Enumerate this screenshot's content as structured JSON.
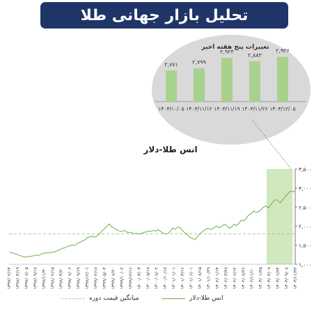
{
  "header": {
    "title": "تحلیل بازار جهانی طلا"
  },
  "colors": {
    "title_bg": "#1f3568",
    "bar": "#a9d18e",
    "line": "#70ad47",
    "highlight": "#c9e4b3",
    "average_line": "#a6c97e"
  },
  "chart_data": [
    {
      "type": "bar",
      "title": "تغییرات پنج هفته اخیر",
      "categories": [
        "۱۴۰۳/۱۰/۰۵",
        "۱۴۰۳/۱۱/۱۲",
        "۱۴۰۳/۱۱/۱۹",
        "۱۴۰۳/۱۱/۲۶",
        "۱۴۰۳/۱۲/۰۵"
      ],
      "values": [
        2771,
        2799,
        2923,
        2883,
        2936
      ],
      "value_labels": [
        "۲,۷۷۱",
        "۲,۷۹۹",
        "۲,۹۲۳",
        "۲,۸۸۳",
        "۲,۹۳۶"
      ],
      "ylim": [
        2400,
        3000
      ]
    },
    {
      "type": "line",
      "title": "انس طلا-دلار",
      "xlabel": "",
      "ylabel": "",
      "ylim": [
        1000,
        3500
      ],
      "y_ticks": [
        1000,
        1500,
        2000,
        2500,
        3000,
        3500
      ],
      "y_tick_labels": [
        "۱,۰۰۰",
        "۱,۵۰۰",
        "۲,۰۰۰",
        "۲,۵۰۰",
        "۳,۰۰۰",
        "۳,۵۰۰"
      ],
      "x_tick_labels": [
        "۱۳۹۷/۰۲/۱۴",
        "۱۳۹۷/۰۴/۱۹",
        "۱۳۹۷/۰۷/۰۵",
        "۱۳۹۷/۰۹/۱۸",
        "۱۳۹۷/۱۱/۳۰",
        "۱۳۹۸/۰۲/۱۵",
        "۱۳۹۸/۰۴/۲۰",
        "۱۳۹۸/۰۷/۰۶",
        "۱۳۹۸/۰۹/۱۹",
        "۱۳۹۸/۱۲/۰۱",
        "۱۳۹۹/۰۲/۱۷",
        "۱۳۹۹/۰۵/۰۴",
        "۱۳۹۹/۰۷/۲۰",
        "۱۳۹۹/۱۰/۰۲",
        "۱۳۹۹/۱۲/۱۶",
        "۱۴۰۰/۰۳/۰۳",
        "۱۴۰۰/۰۵/۱۸",
        "۱۴۰۰/۰۸/۰۲",
        "۱۴۰۰/۱۰/۱۷",
        "۱۴۰۱/۰۱/۰۱",
        "۱۴۰۱/۰۳/۱۶",
        "۱۴۰۱/۰۶/۰۱",
        "۱۴۰۱/۰۸/۱۵",
        "۱۴۰۱/۱۰/۲۹",
        "۱۴۰۲/۰۱/۱۴",
        "۱۴۰۲/۰۳/۲۸",
        "۱۴۰۲/۰۶/۱۲",
        "۱۴۰۲/۰۸/۲۶",
        "۱۴۰۲/۱۱/۱۰",
        "۱۴۰۳/۰۱/۲۵",
        "۱۴۰۳/۰۴/۰۹",
        "۱۴۰۳/۰۶/۲۴",
        "۱۴۰۳/۰۹/۰۸",
        "۱۴۰۳/۱۱/۲۲"
      ],
      "highlight_range": [
        29.7,
        32.7
      ],
      "average": 1800,
      "series": [
        {
          "name": "انس طلا-دلار",
          "values": [
            1320,
            1305,
            1290,
            1265,
            1240,
            1215,
            1200,
            1190,
            1205,
            1210,
            1225,
            1240,
            1230,
            1265,
            1290,
            1300,
            1295,
            1310,
            1320,
            1340,
            1360,
            1395,
            1420,
            1440,
            1470,
            1490,
            1510,
            1500,
            1550,
            1575,
            1610,
            1640,
            1700,
            1720,
            1740,
            1710,
            1750,
            1800,
            1880,
            1930,
            2000,
            2060,
            1980,
            1950,
            1900,
            1880,
            1860,
            1890,
            1850,
            1830,
            1840,
            1800,
            1820,
            1790,
            1810,
            1830,
            1850,
            1880,
            1860,
            1890,
            1870,
            1910,
            1860,
            1820,
            1800,
            1810,
            1870,
            1950,
            1920,
            1980,
            1960,
            1880,
            1820,
            1780,
            1700,
            1680,
            1650,
            1720,
            1800,
            1850,
            1900,
            1940,
            1930,
            1920,
            1970,
            2000,
            1960,
            1990,
            2050,
            2020,
            1940,
            1980,
            2050,
            2020,
            2080,
            2160,
            2140,
            2200,
            2300,
            2330,
            2400,
            2360,
            2380,
            2430,
            2500,
            2530,
            2480,
            2560,
            2650,
            2700,
            2660,
            2620,
            2700,
            2780,
            2850,
            2920,
            2900,
            2940
          ]
        }
      ]
    }
  ],
  "legend": {
    "series_label": "انس طلا-دلار",
    "average_label": "میانگین قیمت دوره"
  }
}
